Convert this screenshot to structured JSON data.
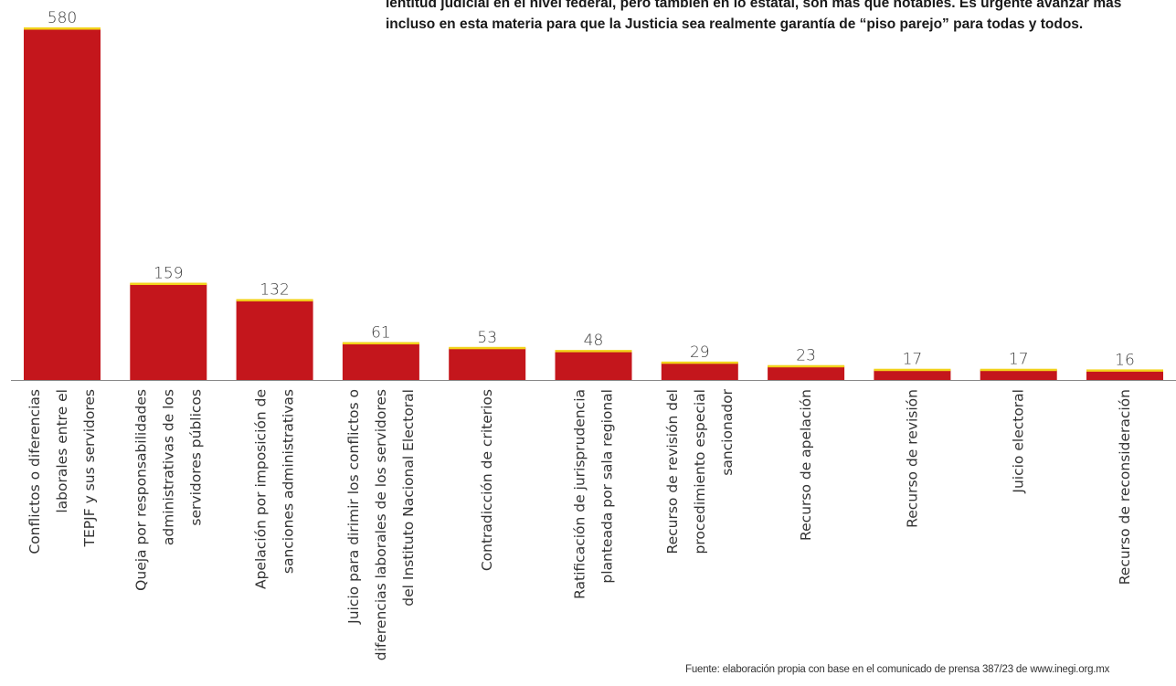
{
  "intro": {
    "lines": [
      "lentitud judicial en el nivel federal, pero también en lo estatal, son más que notables. Es urgente avanzar más",
      "incluso en esta materia para que la Justicia sea realmente garantía de “piso parejo” para todas y todos."
    ]
  },
  "colors": {
    "bar": "#c4161c",
    "bar_top": "#f2d21b",
    "baseline": "#888888"
  },
  "chart_data": {
    "type": "bar",
    "ylim": [
      0,
      580
    ],
    "grid": false,
    "legend": "none",
    "categories": [
      [
        "Conflictos o diferencias",
        "laborales entre el",
        "TEPJF y sus servidores"
      ],
      [
        "Queja por responsabilidades",
        "administrativas de los",
        "servidores públicos"
      ],
      [
        "Apelación por imposición de",
        "sanciones administrativas"
      ],
      [
        "Juicio para dirimir los conflictos o",
        "diferencias laborales de los servidores",
        "del Instituto Nacional Electoral"
      ],
      [
        "Contradicción de criterios"
      ],
      [
        "Ratificación de jurisprudencia",
        "planteada por sala regional"
      ],
      [
        "Recurso de revisión del",
        "procedimiento especial",
        "sancionador"
      ],
      [
        "Recurso de apelación"
      ],
      [
        "Recurso de revisión"
      ],
      [
        "Juicio electoral"
      ],
      [
        "Recurso de reconsideración"
      ]
    ],
    "values": [
      580,
      159,
      132,
      61,
      53,
      48,
      29,
      23,
      17,
      17,
      16
    ]
  },
  "source": "Fuente: elaboración propia con base en el comunicado de prensa 387/23 de www.inegi.org.mx"
}
